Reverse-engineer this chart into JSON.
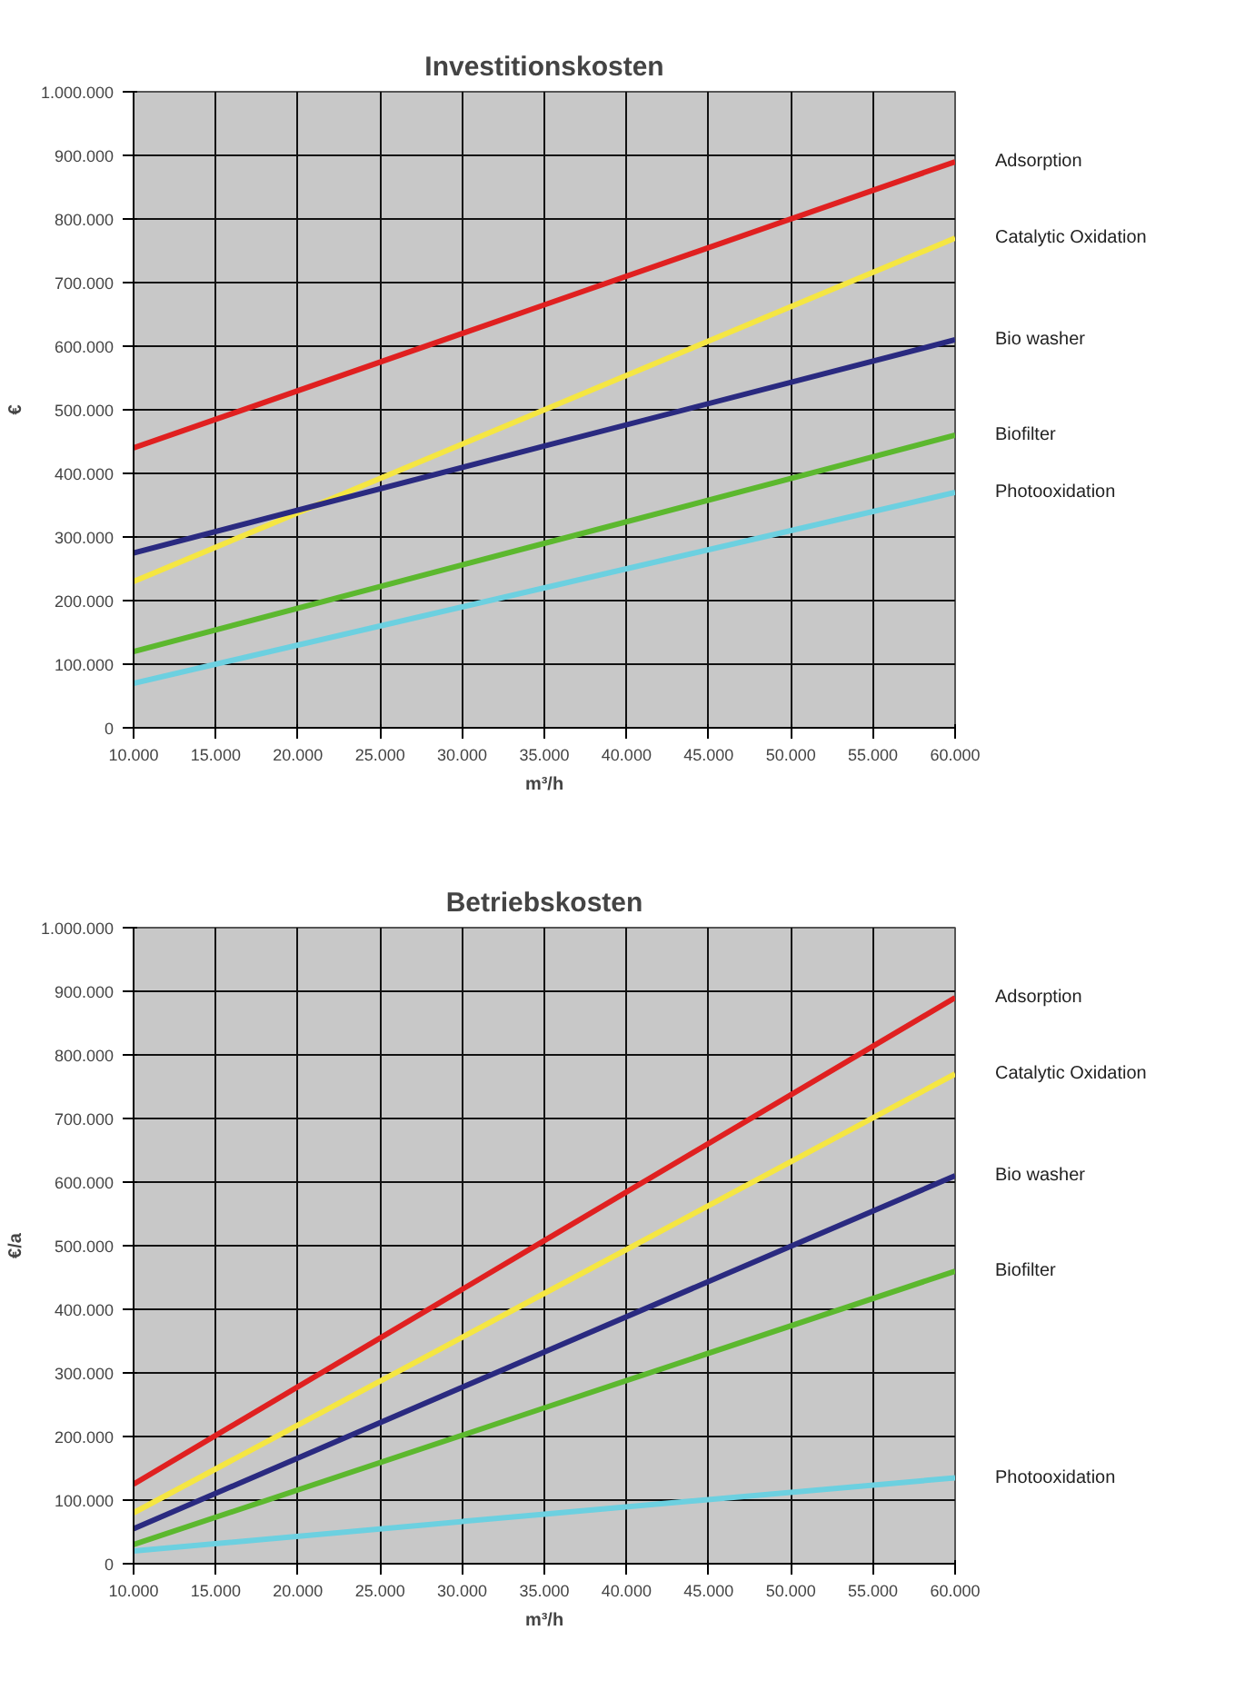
{
  "chart_data": [
    {
      "type": "line",
      "title": "Investitionskosten",
      "xlabel": "m³/h",
      "ylabel": "€",
      "x": [
        10000,
        35000,
        60000
      ],
      "xlim": [
        10000,
        60000
      ],
      "ylim": [
        0,
        1000000
      ],
      "xticks": [
        {
          "value": 10000,
          "label": "10.000"
        },
        {
          "value": 15000,
          "label": "15.000"
        },
        {
          "value": 20000,
          "label": "20.000"
        },
        {
          "value": 25000,
          "label": "25.000"
        },
        {
          "value": 30000,
          "label": "30.000"
        },
        {
          "value": 35000,
          "label": "35.000"
        },
        {
          "value": 40000,
          "label": "40.000"
        },
        {
          "value": 45000,
          "label": "45.000"
        },
        {
          "value": 50000,
          "label": "50.000"
        },
        {
          "value": 55000,
          "label": "55.000"
        },
        {
          "value": 60000,
          "label": "60.000"
        }
      ],
      "yticks": [
        0,
        {
          "value": 100000,
          "label": "100.000"
        },
        {
          "value": 200000,
          "label": "200.000"
        },
        {
          "value": 300000,
          "label": "300.000"
        },
        {
          "value": 400000,
          "label": "400.000"
        },
        {
          "value": 500000,
          "label": "500.000"
        },
        {
          "value": 600000,
          "label": "600.000"
        },
        {
          "value": 700000,
          "label": "700.000"
        },
        {
          "value": 800000,
          "label": "800.000"
        },
        {
          "value": 900000,
          "label": "900.000"
        },
        {
          "value": 1000000,
          "label": "1.000.000"
        }
      ],
      "grid": true,
      "legend": false,
      "marker": "none",
      "line_style": "solid",
      "series": [
        {
          "name": "Adsorption",
          "color": "#e02020",
          "values": [
            440000,
            665000,
            890000
          ]
        },
        {
          "name": "Catalytic Oxidation",
          "color": "#f5e642",
          "values": [
            230000,
            500000,
            770000
          ]
        },
        {
          "name": "Bio washer",
          "color": "#2a2a80",
          "values": [
            275000,
            443000,
            610000
          ]
        },
        {
          "name": "Biofilter",
          "color": "#5cb82e",
          "values": [
            120000,
            290000,
            460000
          ]
        },
        {
          "name": "Photooxidation",
          "color": "#6cd0e0",
          "values": [
            70000,
            220000,
            370000
          ]
        }
      ]
    },
    {
      "type": "line",
      "title": "Betriebskosten",
      "xlabel": "m³/h",
      "ylabel": "€/a",
      "x": [
        10000,
        35000,
        60000
      ],
      "xlim": [
        10000,
        60000
      ],
      "ylim": [
        0,
        1000000
      ],
      "xticks": [
        {
          "value": 10000,
          "label": "10.000"
        },
        {
          "value": 15000,
          "label": "15.000"
        },
        {
          "value": 20000,
          "label": "20.000"
        },
        {
          "value": 25000,
          "label": "25.000"
        },
        {
          "value": 30000,
          "label": "30.000"
        },
        {
          "value": 35000,
          "label": "35.000"
        },
        {
          "value": 40000,
          "label": "40.000"
        },
        {
          "value": 45000,
          "label": "45.000"
        },
        {
          "value": 50000,
          "label": "50.000"
        },
        {
          "value": 55000,
          "label": "55.000"
        },
        {
          "value": 60000,
          "label": "60.000"
        }
      ],
      "yticks": [
        0,
        {
          "value": 100000,
          "label": "100.000"
        },
        {
          "value": 200000,
          "label": "200.000"
        },
        {
          "value": 300000,
          "label": "300.000"
        },
        {
          "value": 400000,
          "label": "400.000"
        },
        {
          "value": 500000,
          "label": "500.000"
        },
        {
          "value": 600000,
          "label": "600.000"
        },
        {
          "value": 700000,
          "label": "700.000"
        },
        {
          "value": 800000,
          "label": "800.000"
        },
        {
          "value": 900000,
          "label": "900.000"
        },
        {
          "value": 1000000,
          "label": "1.000.000"
        }
      ],
      "grid": true,
      "legend": false,
      "marker": "none",
      "line_style": "solid",
      "series": [
        {
          "name": "Adsorption",
          "color": "#e02020",
          "values": [
            125000,
            508000,
            890000
          ]
        },
        {
          "name": "Catalytic Oxidation",
          "color": "#f5e642",
          "values": [
            80000,
            425000,
            770000
          ]
        },
        {
          "name": "Bio washer",
          "color": "#2a2a80",
          "values": [
            55000,
            333000,
            610000
          ]
        },
        {
          "name": "Biofilter",
          "color": "#5cb82e",
          "values": [
            30000,
            245000,
            460000
          ]
        },
        {
          "name": "Photooxidation",
          "color": "#6cd0e0",
          "values": [
            20000,
            78000,
            135000
          ]
        }
      ]
    }
  ]
}
